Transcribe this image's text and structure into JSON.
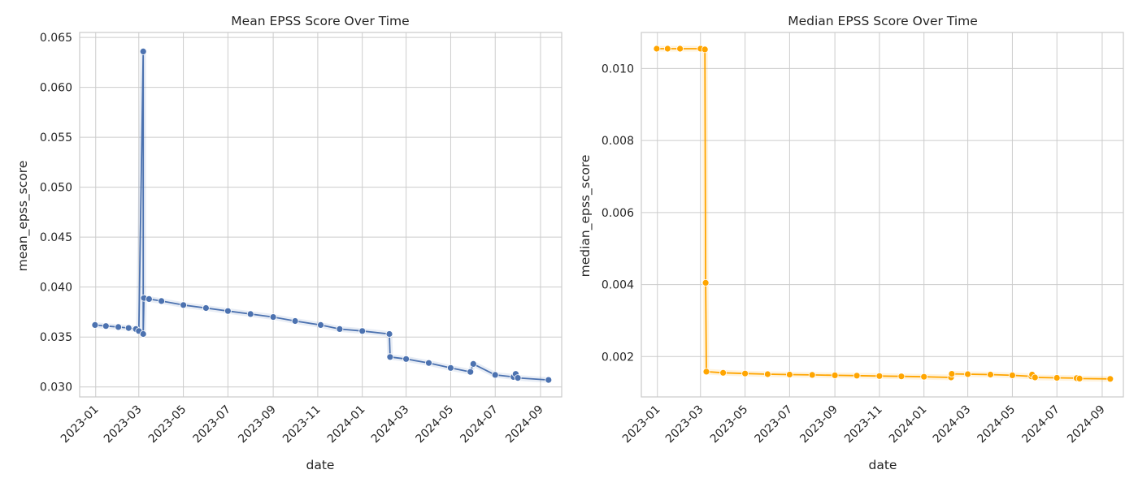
{
  "chart_data": [
    {
      "type": "line",
      "title": "Mean EPSS Score Over Time",
      "xlabel": "date",
      "ylabel": "mean_epss_score",
      "grid": true,
      "x_ticks": [
        "2023-01",
        "2023-03",
        "2023-05",
        "2023-07",
        "2023-09",
        "2023-11",
        "2024-01",
        "2024-03",
        "2024-05",
        "2024-07",
        "2024-09"
      ],
      "y_ticks": [
        "0.030",
        "0.035",
        "0.040",
        "0.045",
        "0.050",
        "0.055",
        "0.060",
        "0.065"
      ],
      "xlim": [
        "2022-12-10",
        "2024-09-30"
      ],
      "ylim": [
        0.029,
        0.0655
      ],
      "color": "#4c72b0",
      "series": [
        {
          "x": [
            "2022-12-31",
            "2023-01-15",
            "2023-02-01",
            "2023-02-15",
            "2023-02-25",
            "2023-03-01",
            "2023-03-07",
            "2023-03-07",
            "2023-03-08",
            "2023-03-15",
            "2023-04-01",
            "2023-05-01",
            "2023-06-01",
            "2023-07-01",
            "2023-08-01",
            "2023-09-01",
            "2023-10-01",
            "2023-11-05",
            "2023-12-01",
            "2024-01-01",
            "2024-02-07",
            "2024-02-08",
            "2024-03-01",
            "2024-04-01",
            "2024-05-01",
            "2024-05-28",
            "2024-06-01",
            "2024-07-01",
            "2024-07-26",
            "2024-07-29",
            "2024-08-01",
            "2024-09-12"
          ],
          "y": [
            0.0362,
            0.0361,
            0.036,
            0.0359,
            0.0358,
            0.0356,
            0.0636,
            0.0353,
            0.0389,
            0.0388,
            0.0386,
            0.0382,
            0.0379,
            0.0376,
            0.0373,
            0.037,
            0.0366,
            0.0362,
            0.0358,
            0.0356,
            0.0353,
            0.033,
            0.0328,
            0.0324,
            0.0319,
            0.0315,
            0.0323,
            0.0312,
            0.031,
            0.0313,
            0.0309,
            0.0307
          ]
        }
      ]
    },
    {
      "type": "line",
      "title": "Median EPSS Score Over Time",
      "xlabel": "date",
      "ylabel": "median_epss_score",
      "grid": true,
      "x_ticks": [
        "2023-01",
        "2023-03",
        "2023-05",
        "2023-07",
        "2023-09",
        "2023-11",
        "2024-01",
        "2024-03",
        "2024-05",
        "2024-07",
        "2024-09"
      ],
      "y_ticks": [
        "0.002",
        "0.004",
        "0.006",
        "0.008",
        "0.010"
      ],
      "xlim": [
        "2022-12-10",
        "2024-09-30"
      ],
      "ylim": [
        0.00088,
        0.011
      ],
      "color": "#ffa500",
      "series": [
        {
          "x": [
            "2022-12-31",
            "2023-01-15",
            "2023-02-01",
            "2023-03-01",
            "2023-03-07",
            "2023-03-08",
            "2023-03-09",
            "2023-04-01",
            "2023-05-01",
            "2023-06-01",
            "2023-07-01",
            "2023-08-01",
            "2023-09-01",
            "2023-10-01",
            "2023-11-01",
            "2023-12-01",
            "2024-01-01",
            "2024-02-07",
            "2024-02-08",
            "2024-03-01",
            "2024-04-01",
            "2024-05-01",
            "2024-05-27",
            "2024-05-28",
            "2024-06-01",
            "2024-07-01",
            "2024-07-28",
            "2024-08-01",
            "2024-09-12"
          ],
          "y": [
            0.01055,
            0.01055,
            0.01055,
            0.01055,
            0.01053,
            0.00405,
            0.00158,
            0.00155,
            0.00153,
            0.00151,
            0.0015,
            0.00149,
            0.00148,
            0.00147,
            0.00146,
            0.00145,
            0.00144,
            0.00142,
            0.00152,
            0.00151,
            0.0015,
            0.00148,
            0.00145,
            0.0015,
            0.00142,
            0.00141,
            0.0014,
            0.00139,
            0.00138
          ]
        }
      ]
    }
  ]
}
